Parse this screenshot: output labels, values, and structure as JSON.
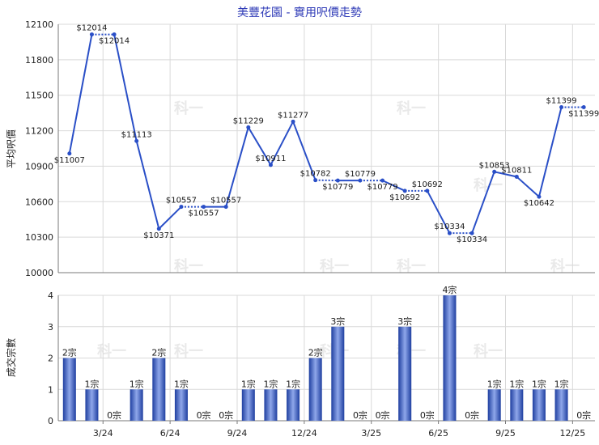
{
  "chart_data": [
    {
      "type": "line",
      "title": "美豐花園 - 實用呎價走勢",
      "ylabel": "平均呎價",
      "ylim": [
        10000,
        12100
      ],
      "yticks": [
        10000,
        10300,
        10600,
        10900,
        11200,
        11500,
        11800,
        12100
      ],
      "xtick_labels": [
        "3/24",
        "6/24",
        "9/24",
        "12/24",
        "3/25",
        "6/25",
        "9/25",
        "12/25"
      ],
      "series": [
        {
          "values": [
            11007,
            12014,
            12014,
            11113,
            10371,
            10557,
            10557,
            10557,
            11229,
            10911,
            11277,
            10782,
            10779,
            10779,
            10779,
            10692,
            10692,
            10334,
            10334,
            10853,
            10811,
            10642,
            11399,
            11399
          ],
          "labels": [
            "$11007",
            "$12014",
            "$12014",
            "$11113",
            "$10371",
            "$10557",
            "$10557",
            "$10557",
            "$11229",
            "$10911",
            "$11277",
            "$10782",
            "$10779",
            "$10779",
            "$10779",
            "$10692",
            "$10692",
            "$10334",
            "$10334",
            "$10853",
            "$10811",
            "$10642",
            "$11399",
            "$11399"
          ],
          "carried": [
            false,
            false,
            true,
            false,
            false,
            false,
            true,
            false,
            false,
            false,
            false,
            false,
            true,
            false,
            true,
            false,
            true,
            false,
            true,
            false,
            false,
            false,
            false,
            true
          ]
        }
      ]
    },
    {
      "type": "bar",
      "ylabel": "成交宗數",
      "ylim": [
        0,
        4
      ],
      "yticks": [
        0,
        1,
        2,
        3,
        4
      ],
      "xtick_labels": [
        "3/24",
        "6/24",
        "9/24",
        "12/24",
        "3/25",
        "6/25",
        "9/25",
        "12/25"
      ],
      "values": [
        2,
        1,
        0,
        1,
        2,
        1,
        0,
        0,
        1,
        1,
        1,
        2,
        3,
        0,
        0,
        3,
        0,
        4,
        0,
        1,
        1,
        1,
        1,
        0
      ],
      "labels": [
        "2宗",
        "1宗",
        "0宗",
        "1宗",
        "2宗",
        "1宗",
        "0宗",
        "0宗",
        "1宗",
        "1宗",
        "1宗",
        "2宗",
        "3宗",
        "0宗",
        "0宗",
        "3宗",
        "0宗",
        "4宗",
        "0宗",
        "1宗",
        "1宗",
        "1宗",
        "1宗",
        "0宗"
      ]
    }
  ],
  "colors": {
    "line": "#2a4fc7",
    "bar_dark": "#1f3fa0",
    "bar_light": "#8fa7ea",
    "grid": "#d9d9d9",
    "axis": "#7a7a7a",
    "watermark": "#e9e9e9"
  },
  "watermark": "科一"
}
